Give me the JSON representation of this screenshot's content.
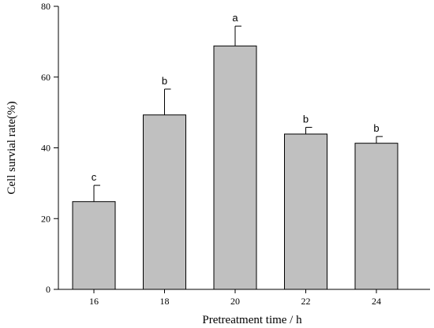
{
  "chart_data": {
    "type": "bar",
    "title": "",
    "xlabel": "Pretreatment time / h",
    "ylabel": "Cell survial rate(%)",
    "ylim": [
      0,
      80
    ],
    "yticks": [
      0,
      20,
      40,
      60,
      80
    ],
    "categories": [
      "16",
      "18",
      "20",
      "22",
      "24"
    ],
    "values": [
      24.8,
      49.3,
      68.8,
      43.9,
      41.3
    ],
    "errors": [
      4.6,
      7.3,
      5.6,
      1.9,
      1.9
    ],
    "significance_labels": [
      "c",
      "b",
      "a",
      "b",
      "b"
    ],
    "bar_color": "#c0c0c0",
    "grid": false,
    "legend": "none"
  }
}
